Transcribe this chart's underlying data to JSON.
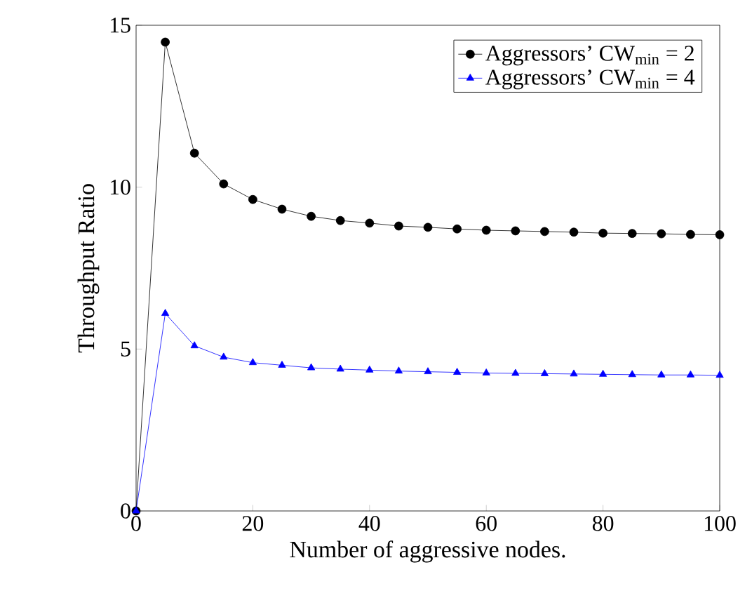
{
  "chart_data": {
    "type": "line",
    "xlabel": "Number of aggressive nodes.",
    "ylabel": "Throughput Ratio",
    "xlim": [
      0,
      100
    ],
    "ylim": [
      0,
      15
    ],
    "xticks": [
      0,
      20,
      40,
      60,
      80,
      100
    ],
    "yticks": [
      0,
      5,
      10,
      15
    ],
    "grid": false,
    "legend": "top right",
    "x": [
      0,
      5,
      10,
      15,
      20,
      25,
      30,
      35,
      40,
      45,
      50,
      55,
      60,
      65,
      70,
      75,
      80,
      85,
      90,
      95,
      100
    ],
    "series": [
      {
        "name": "Aggressors’ CW$_{min}$ = 2",
        "color": "#000000",
        "marker": "circle",
        "values": [
          0,
          14.48,
          11.05,
          10.1,
          9.62,
          9.32,
          9.1,
          8.97,
          8.89,
          8.8,
          8.76,
          8.71,
          8.67,
          8.65,
          8.63,
          8.61,
          8.58,
          8.57,
          8.56,
          8.54,
          8.53
        ]
      },
      {
        "name": "Aggressors’ CW$_{min}$ = 4",
        "color": "#0000ff",
        "marker": "triangle",
        "values": [
          0,
          6.1,
          5.1,
          4.75,
          4.58,
          4.5,
          4.42,
          4.38,
          4.35,
          4.32,
          4.3,
          4.28,
          4.26,
          4.25,
          4.24,
          4.23,
          4.22,
          4.21,
          4.2,
          4.2,
          4.19
        ]
      }
    ]
  }
}
